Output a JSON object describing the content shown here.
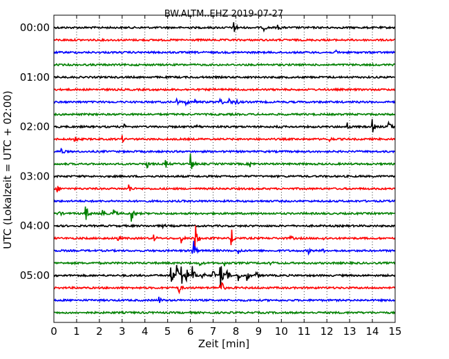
{
  "chart_data": {
    "type": "line",
    "title": "BW.ALTM..EHZ 2019-07-27",
    "xlabel": "Zeit  [min]",
    "ylabel": "UTC (Lokalzeit = UTC + 02:00)",
    "xlim": [
      0,
      15
    ],
    "x_ticks": [
      "0",
      "1",
      "2",
      "3",
      "4",
      "5",
      "6",
      "7",
      "8",
      "9",
      "10",
      "11",
      "12",
      "13",
      "14",
      "15"
    ],
    "y_ticks": [
      {
        "label": "00:00",
        "row": 0
      },
      {
        "label": "01:00",
        "row": 4
      },
      {
        "label": "02:00",
        "row": 8
      },
      {
        "label": "03:00",
        "row": 12
      },
      {
        "label": "04:00",
        "row": 16
      },
      {
        "label": "05:00",
        "row": 20
      }
    ],
    "grid": "vertical dotted",
    "row_interval_min": 15,
    "colors": [
      "#000000",
      "#ff0000",
      "#0000ff",
      "#008000"
    ],
    "series": [
      {
        "values": [
          [
            7.9,
            0.85
          ],
          [
            9.2,
            0.3
          ],
          [
            9.8,
            0.3
          ]
        ]
      },
      {
        "values": []
      },
      {
        "values": [
          [
            12.4,
            0.2
          ]
        ]
      },
      {
        "values": []
      },
      {
        "values": []
      },
      {
        "values": []
      },
      {
        "values": [
          [
            5.4,
            0.25
          ],
          [
            5.8,
            0.25
          ],
          [
            6.2,
            0.2
          ],
          [
            7.3,
            0.4
          ],
          [
            7.7,
            0.3
          ],
          [
            8.0,
            0.3
          ]
        ]
      },
      {
        "values": []
      },
      {
        "values": [
          [
            3.1,
            0.15
          ],
          [
            6.3,
            0.15
          ],
          [
            9.8,
            0.15
          ],
          [
            12.9,
            0.3
          ],
          [
            14.0,
            0.55
          ],
          [
            14.7,
            0.65
          ]
        ]
      },
      {
        "values": [
          [
            0.9,
            0.35
          ],
          [
            3.0,
            0.25
          ],
          [
            12.1,
            0.25
          ]
        ]
      },
      {
        "values": [
          [
            0.3,
            0.4
          ]
        ]
      },
      {
        "values": [
          [
            4.1,
            0.35
          ],
          [
            4.9,
            0.4
          ],
          [
            6.0,
            1.05
          ],
          [
            8.6,
            0.3
          ]
        ]
      },
      {
        "values": []
      },
      {
        "values": [
          [
            0.1,
            0.45
          ],
          [
            3.3,
            0.4
          ]
        ]
      },
      {
        "values": []
      },
      {
        "values": [
          [
            0.2,
            0.3
          ],
          [
            1.4,
            0.85
          ],
          [
            2.1,
            0.75
          ],
          [
            2.6,
            0.6
          ],
          [
            3.4,
            1.0
          ]
        ]
      },
      {
        "values": [
          [
            4.8,
            0.15
          ]
        ]
      },
      {
        "values": [
          [
            2.8,
            0.3
          ],
          [
            4.4,
            0.25
          ],
          [
            5.6,
            0.35
          ],
          [
            6.2,
            1.7
          ],
          [
            7.8,
            0.8
          ],
          [
            10.4,
            0.2
          ],
          [
            11.8,
            0.2
          ]
        ]
      },
      {
        "values": [
          [
            6.1,
            1.6
          ],
          [
            8.1,
            0.3
          ],
          [
            11.2,
            0.2
          ],
          [
            11.8,
            0.2
          ]
        ]
      },
      {
        "values": [
          [
            6.4,
            0.2
          ],
          [
            7.5,
            0.2
          ],
          [
            9.5,
            0.3
          ]
        ]
      },
      {
        "values": [
          [
            5.1,
            1.9
          ],
          [
            5.4,
            1.2
          ],
          [
            5.6,
            1.1
          ],
          [
            5.8,
            0.9
          ],
          [
            6.1,
            0.8
          ],
          [
            6.5,
            0.6
          ],
          [
            7.0,
            0.5
          ],
          [
            7.3,
            1.5
          ],
          [
            7.6,
            0.6
          ],
          [
            8.1,
            0.5
          ],
          [
            8.5,
            0.4
          ],
          [
            8.9,
            0.4
          ]
        ]
      },
      {
        "values": [
          [
            7.3,
            1.5
          ],
          [
            5.5,
            0.4
          ]
        ]
      },
      {
        "values": [
          [
            4.6,
            0.35
          ]
        ]
      },
      {
        "values": []
      }
    ]
  }
}
